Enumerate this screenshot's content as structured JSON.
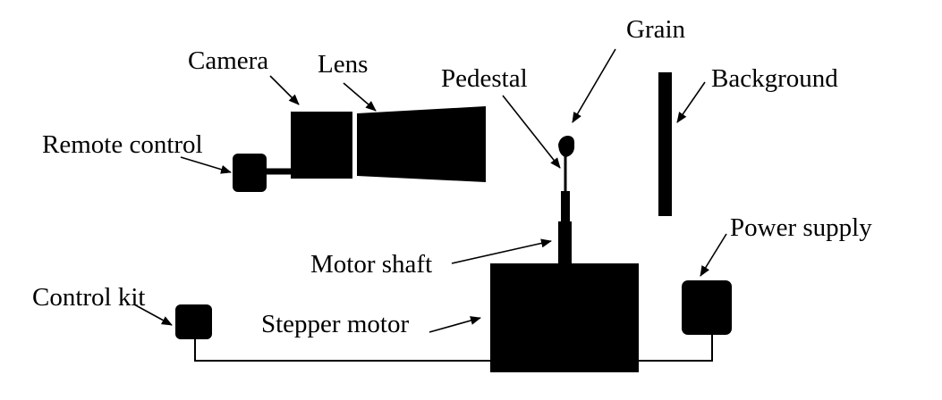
{
  "labels": {
    "camera": "Camera",
    "lens": "Lens",
    "grain": "Grain",
    "pedestal": "Pedestal",
    "background": "Background",
    "remote_control": "Remote control",
    "motor_shaft": "Motor shaft",
    "power_supply": "Power supply",
    "control_kit": "Control kit",
    "stepper_motor": "Stepper motor"
  },
  "colors": {
    "ink": "#000000",
    "paper": "#ffffff"
  }
}
